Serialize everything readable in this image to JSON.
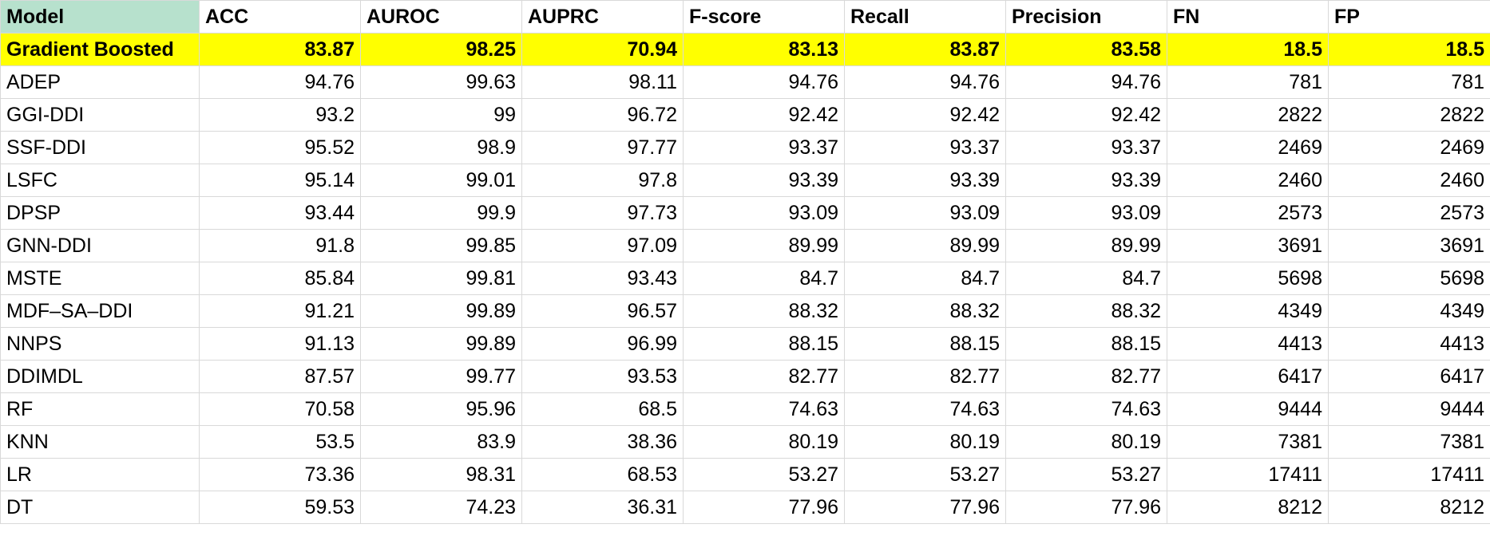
{
  "table": {
    "headers": [
      "Model",
      "ACC",
      "AUROC",
      "AUPRC",
      "F-score",
      "Recall",
      "Precision",
      "FN",
      "FP"
    ],
    "highlight_row": {
      "model": "Gradient Boosted",
      "values": [
        "83.87",
        "98.25",
        "70.94",
        "83.13",
        "83.87",
        "83.58",
        "18.5",
        "18.5"
      ]
    },
    "rows": [
      {
        "model": "ADEP",
        "values": [
          "94.76",
          "99.63",
          "98.11",
          "94.76",
          "94.76",
          "94.76",
          "781",
          "781"
        ]
      },
      {
        "model": "GGI-DDI",
        "values": [
          "93.2",
          "99",
          "96.72",
          "92.42",
          "92.42",
          "92.42",
          "2822",
          "2822"
        ]
      },
      {
        "model": "SSF-DDI",
        "values": [
          "95.52",
          "98.9",
          "97.77",
          "93.37",
          "93.37",
          "93.37",
          "2469",
          "2469"
        ]
      },
      {
        "model": "LSFC",
        "values": [
          "95.14",
          "99.01",
          "97.8",
          "93.39",
          "93.39",
          "93.39",
          "2460",
          "2460"
        ]
      },
      {
        "model": "DPSP",
        "values": [
          "93.44",
          "99.9",
          "97.73",
          "93.09",
          "93.09",
          "93.09",
          "2573",
          "2573"
        ]
      },
      {
        "model": "GNN-DDI",
        "values": [
          "91.8",
          "99.85",
          "97.09",
          "89.99",
          "89.99",
          "89.99",
          "3691",
          "3691"
        ]
      },
      {
        "model": "MSTE",
        "values": [
          "85.84",
          "99.81",
          "93.43",
          "84.7",
          "84.7",
          "84.7",
          "5698",
          "5698"
        ]
      },
      {
        "model": "MDF–SA–DDI",
        "values": [
          "91.21",
          "99.89",
          "96.57",
          "88.32",
          "88.32",
          "88.32",
          "4349",
          "4349"
        ]
      },
      {
        "model": "NNPS",
        "values": [
          "91.13",
          "99.89",
          "96.99",
          "88.15",
          "88.15",
          "88.15",
          "4413",
          "4413"
        ]
      },
      {
        "model": "DDIMDL",
        "values": [
          "87.57",
          "99.77",
          "93.53",
          "82.77",
          "82.77",
          "82.77",
          "6417",
          "6417"
        ]
      },
      {
        "model": "RF",
        "values": [
          "70.58",
          "95.96",
          "68.5",
          "74.63",
          "74.63",
          "74.63",
          "9444",
          "9444"
        ]
      },
      {
        "model": "KNN",
        "values": [
          "53.5",
          "83.9",
          "38.36",
          "80.19",
          "80.19",
          "80.19",
          "7381",
          "7381"
        ]
      },
      {
        "model": "LR",
        "values": [
          "73.36",
          "98.31",
          "68.53",
          "53.27",
          "53.27",
          "53.27",
          "17411",
          "17411"
        ]
      },
      {
        "model": "DT",
        "values": [
          "59.53",
          "74.23",
          "36.31",
          "77.96",
          "77.96",
          "77.96",
          "8212",
          "8212"
        ]
      }
    ]
  },
  "colors": {
    "header_first_cell": "#b7e1cd",
    "highlight_row": "#ffff00",
    "gridline": "#d9d9d9"
  }
}
